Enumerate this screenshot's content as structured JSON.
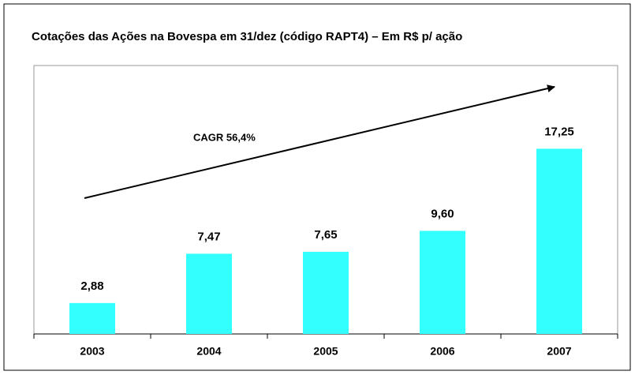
{
  "chart_data": {
    "type": "bar",
    "title": "Cotações das Ações na Bovespa em 31/dez (código RAPT4) – Em R$ p/ ação",
    "annotation": "CAGR 56,4%",
    "categories": [
      "2003",
      "2004",
      "2005",
      "2006",
      "2007"
    ],
    "values": [
      2.88,
      7.47,
      7.65,
      9.6,
      17.25
    ],
    "value_labels": [
      "2,88",
      "7,47",
      "7,65",
      "9,60",
      "17,25"
    ],
    "color": "#33ffff"
  }
}
